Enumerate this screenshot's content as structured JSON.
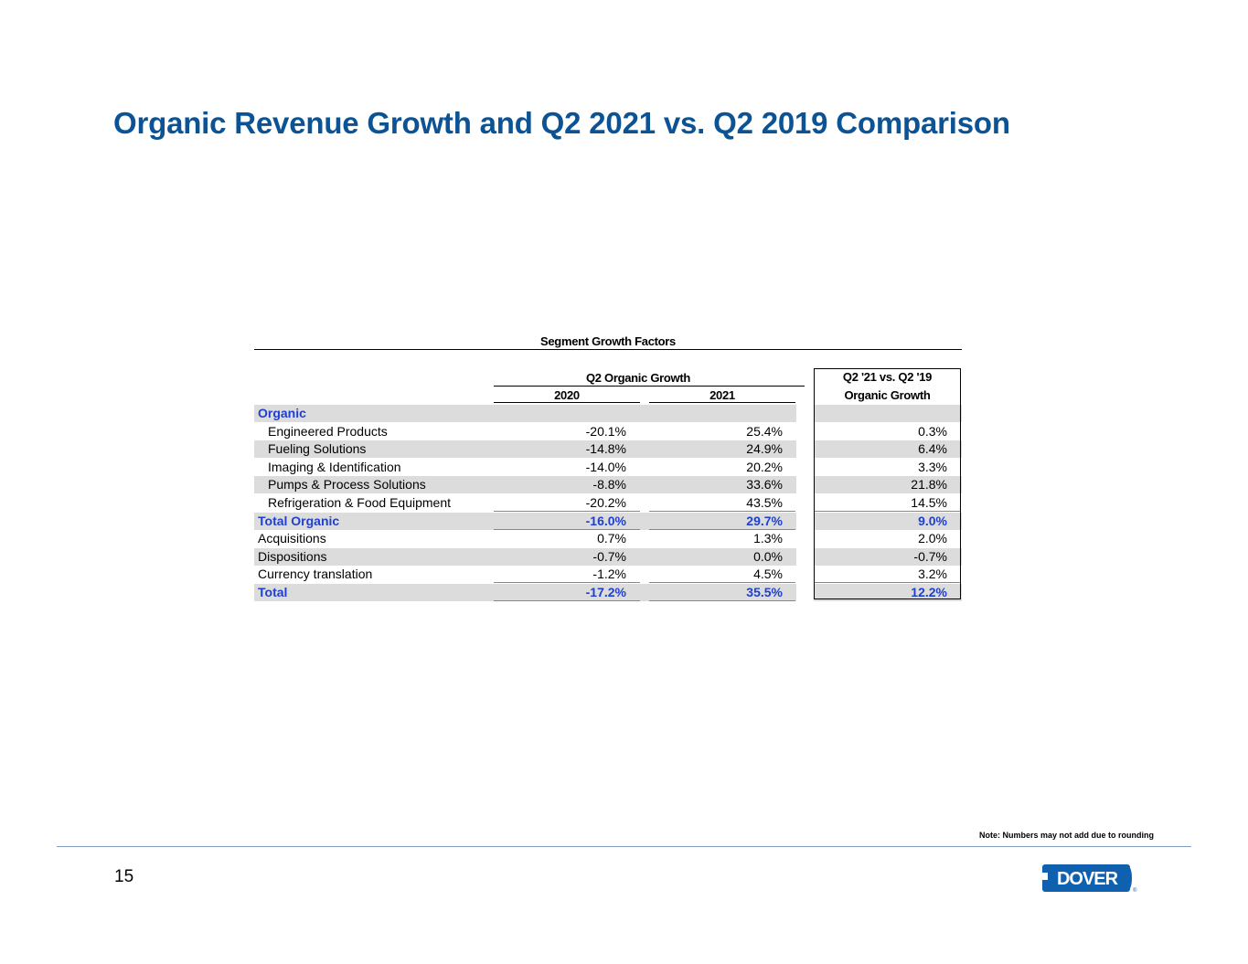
{
  "title": "Organic Revenue Growth and Q2 2021 vs. Q2 2019 Comparison",
  "table": {
    "title": "Segment Growth Factors",
    "group_header": "Q2 Organic Growth",
    "col_2020": "2020",
    "col_2021": "2021",
    "comp_header_line1": "Q2 '21 vs. Q2 '19",
    "comp_header_line2": "Organic Growth",
    "rows": [
      {
        "label": "Organic",
        "v2020": "",
        "v2021": "",
        "comp": ""
      },
      {
        "label": "Engineered Products",
        "v2020": "-20.1%",
        "v2021": "25.4%",
        "comp": "0.3%"
      },
      {
        "label": "Fueling Solutions",
        "v2020": "-14.8%",
        "v2021": "24.9%",
        "comp": "6.4%"
      },
      {
        "label": "Imaging & Identification",
        "v2020": "-14.0%",
        "v2021": "20.2%",
        "comp": "3.3%"
      },
      {
        "label": "Pumps & Process Solutions",
        "v2020": "-8.8%",
        "v2021": "33.6%",
        "comp": "21.8%"
      },
      {
        "label": "Refrigeration & Food Equipment",
        "v2020": "-20.2%",
        "v2021": "43.5%",
        "comp": "14.5%"
      },
      {
        "label": "Total Organic",
        "v2020": "-16.0%",
        "v2021": "29.7%",
        "comp": "9.0%"
      },
      {
        "label": "Acquisitions",
        "v2020": "0.7%",
        "v2021": "1.3%",
        "comp": "2.0%"
      },
      {
        "label": "Dispositions",
        "v2020": "-0.7%",
        "v2021": "0.0%",
        "comp": "-0.7%"
      },
      {
        "label": "Currency translation",
        "v2020": "-1.2%",
        "v2021": "4.5%",
        "comp": "3.2%"
      },
      {
        "label": "Total",
        "v2020": "-17.2%",
        "v2021": "35.5%",
        "comp": "12.2%"
      }
    ]
  },
  "note": "Note: Numbers may not add due to rounding",
  "page_number": "15",
  "logo_text": "DOVER",
  "colors": {
    "title": "#0b5394",
    "highlight_text": "#1f3fcf",
    "shade": "#dcdcdc",
    "logo": "#1060b0"
  }
}
